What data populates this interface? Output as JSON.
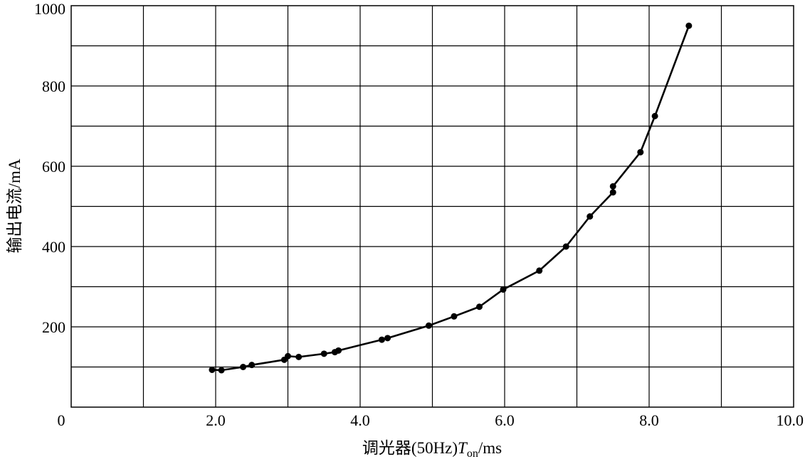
{
  "chart_data": {
    "type": "line",
    "xlabel": "调光器(50Hz)T_on/ms",
    "xlabel_parts": {
      "prefix": "调光器(50Hz)",
      "var": "T",
      "sub": "on",
      "unit": "/ms"
    },
    "ylabel": "输出电流/mA",
    "xlim": [
      0,
      10
    ],
    "ylim": [
      0,
      1000
    ],
    "x_ticks": [
      "0",
      "2.0",
      "4.0",
      "6.0",
      "8.0",
      "10.0"
    ],
    "x_tick_values": [
      0,
      2,
      4,
      6,
      8,
      10
    ],
    "y_ticks": [
      "200",
      "400",
      "600",
      "800",
      "1000"
    ],
    "y_tick_values": [
      200,
      400,
      600,
      800,
      1000
    ],
    "grid": true,
    "legend": "none",
    "series": [
      {
        "x": [
          1.95,
          2.08,
          2.38,
          2.5,
          2.95,
          3.0,
          3.15,
          3.5,
          3.65,
          3.7,
          4.3,
          4.38,
          4.95,
          5.3,
          5.65,
          5.98,
          6.48,
          6.85,
          7.18,
          7.5,
          7.5,
          7.88,
          8.08,
          8.55
        ],
        "y": [
          93,
          92,
          100,
          105,
          118,
          127,
          125,
          133,
          137,
          141,
          168,
          172,
          203,
          226,
          250,
          293,
          340,
          400,
          475,
          535,
          550,
          635,
          725,
          950
        ]
      }
    ]
  }
}
